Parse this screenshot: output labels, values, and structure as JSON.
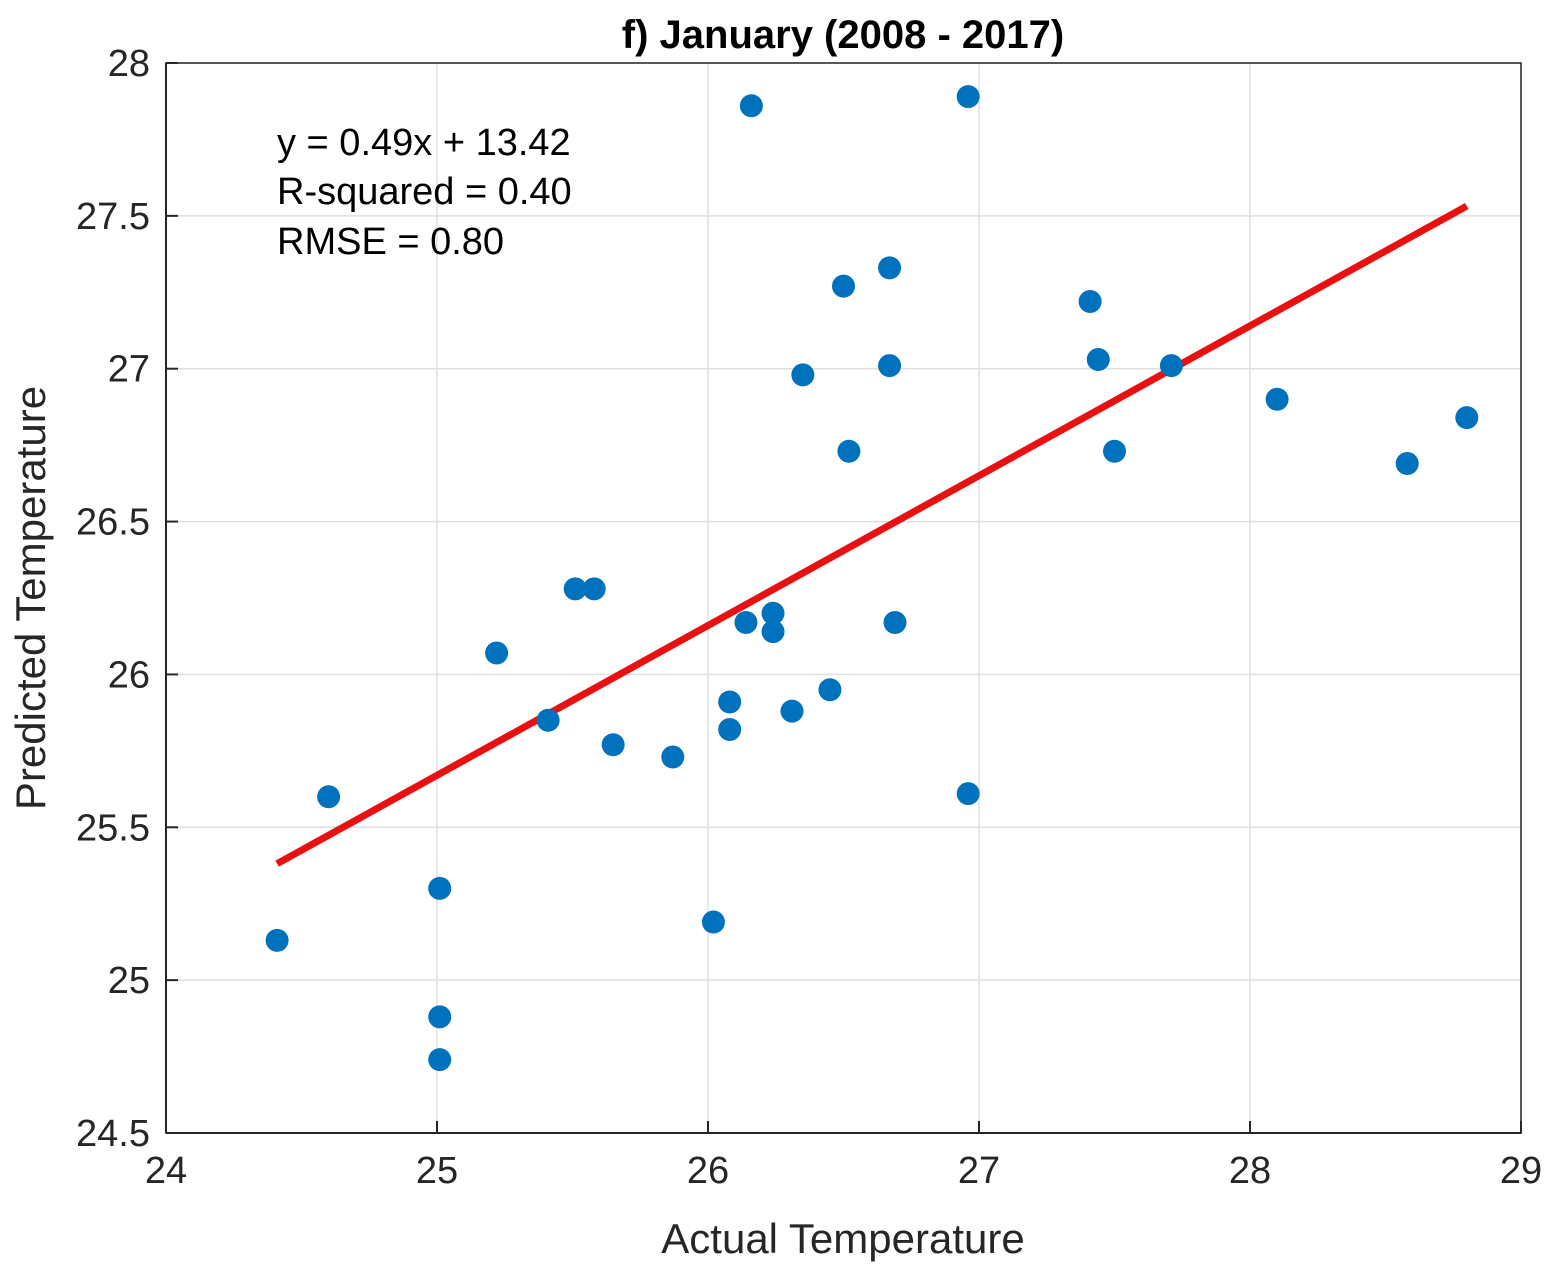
{
  "chart_data": {
    "type": "scatter",
    "title": "f) January (2008 - 2017)",
    "xlabel": "Actual Temperature",
    "ylabel": "Predicted Temperature",
    "xlim": [
      24,
      29
    ],
    "ylim": [
      24.5,
      28
    ],
    "xticks": [
      24,
      25,
      26,
      27,
      28,
      29
    ],
    "yticks": [
      24.5,
      25,
      25.5,
      26,
      26.5,
      27,
      27.5,
      28
    ],
    "xtick_labels": [
      "24",
      "25",
      "26",
      "27",
      "28",
      "29"
    ],
    "ytick_labels": [
      "24.5",
      "25",
      "25.5",
      "26",
      "26.5",
      "27",
      "27.5",
      "28"
    ],
    "grid": true,
    "marker_color": "#0072BD",
    "fit_line": {
      "color": "#E81010",
      "slope": 0.49,
      "intercept": 13.42,
      "x_range": [
        24.41,
        28.8
      ]
    },
    "annotations": [
      "y = 0.49x + 13.42",
      "R-squared = 0.40",
      "RMSE = 0.80"
    ],
    "points": [
      {
        "x": 24.41,
        "y": 25.13
      },
      {
        "x": 24.6,
        "y": 25.6
      },
      {
        "x": 25.01,
        "y": 25.3
      },
      {
        "x": 25.01,
        "y": 24.88
      },
      {
        "x": 25.01,
        "y": 24.74
      },
      {
        "x": 25.22,
        "y": 26.07
      },
      {
        "x": 25.41,
        "y": 25.85
      },
      {
        "x": 25.51,
        "y": 26.28
      },
      {
        "x": 25.58,
        "y": 26.28
      },
      {
        "x": 25.65,
        "y": 25.77
      },
      {
        "x": 25.87,
        "y": 25.73
      },
      {
        "x": 26.02,
        "y": 25.19
      },
      {
        "x": 26.08,
        "y": 25.91
      },
      {
        "x": 26.08,
        "y": 25.82
      },
      {
        "x": 26.14,
        "y": 26.17
      },
      {
        "x": 26.16,
        "y": 27.86
      },
      {
        "x": 26.24,
        "y": 26.2
      },
      {
        "x": 26.24,
        "y": 26.14
      },
      {
        "x": 26.31,
        "y": 25.88
      },
      {
        "x": 26.35,
        "y": 26.98
      },
      {
        "x": 26.45,
        "y": 25.95
      },
      {
        "x": 26.5,
        "y": 27.27
      },
      {
        "x": 26.52,
        "y": 26.73
      },
      {
        "x": 26.67,
        "y": 27.33
      },
      {
        "x": 26.67,
        "y": 27.01
      },
      {
        "x": 26.69,
        "y": 26.17
      },
      {
        "x": 26.96,
        "y": 27.89
      },
      {
        "x": 26.96,
        "y": 25.61
      },
      {
        "x": 27.41,
        "y": 27.22
      },
      {
        "x": 27.44,
        "y": 27.03
      },
      {
        "x": 27.5,
        "y": 26.73
      },
      {
        "x": 27.71,
        "y": 27.01
      },
      {
        "x": 28.1,
        "y": 26.9
      },
      {
        "x": 28.58,
        "y": 26.69
      },
      {
        "x": 28.8,
        "y": 26.84
      }
    ]
  }
}
